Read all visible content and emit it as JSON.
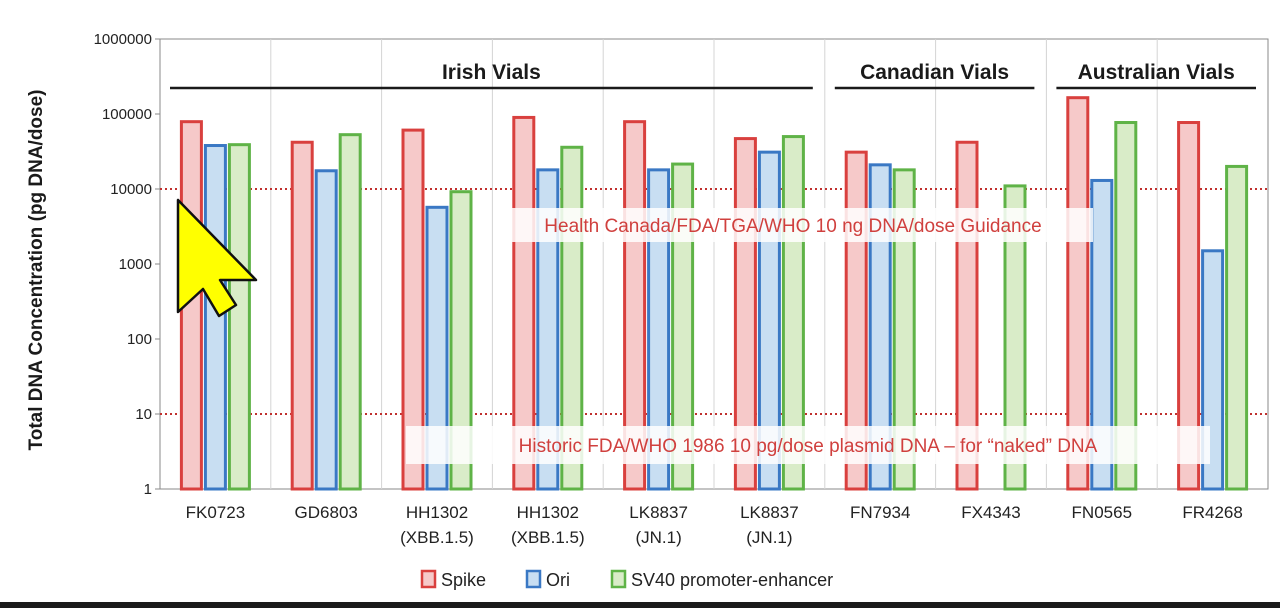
{
  "chart_data": {
    "type": "bar",
    "y_scale": "log",
    "ylim": [
      1,
      1000000
    ],
    "ylabel": "Total DNA Concentration (pg DNA/dose)",
    "xlabel": "",
    "y_ticks": [
      "1",
      "10",
      "100",
      "1000",
      "10000",
      "100000",
      "1000000"
    ],
    "y_tick_values": [
      1,
      10,
      100,
      1000,
      10000,
      100000,
      1000000
    ],
    "grid": "vertical",
    "categories": [
      [
        "FK0723"
      ],
      [
        "GD6803"
      ],
      [
        "HH1302",
        "(XBB.1.5)"
      ],
      [
        "HH1302",
        "(XBB.1.5)"
      ],
      [
        "LK8837",
        "(JN.1)"
      ],
      [
        "LK8837",
        "(JN.1)"
      ],
      [
        "FN7934"
      ],
      [
        "FX4343"
      ],
      [
        "FN0565"
      ],
      [
        "FR4268"
      ]
    ],
    "series": [
      {
        "name": "Spike",
        "values": [
          79000,
          42000,
          61000,
          90000,
          79000,
          47000,
          31000,
          42000,
          165000,
          77000
        ]
      },
      {
        "name": "Ori",
        "values": [
          38000,
          17500,
          5700,
          18000,
          18000,
          31000,
          21000,
          null,
          13000,
          1500
        ]
      },
      {
        "name": "SV40 promoter-enhancer",
        "values": [
          39000,
          53000,
          9200,
          36000,
          21500,
          50000,
          18000,
          11000,
          77000,
          20000
        ]
      }
    ],
    "series_colors": {
      "Spike": {
        "fill": "#f6c9c9",
        "stroke": "#d9403e"
      },
      "Ori": {
        "fill": "#c8def2",
        "stroke": "#3a78c4"
      },
      "SV40 promoter-enhancer": {
        "fill": "#d9ecc8",
        "stroke": "#5fb347"
      }
    },
    "groups": [
      {
        "label": "Irish Vials",
        "from": 0,
        "to": 5
      },
      {
        "label": "Canadian Vials",
        "from": 6,
        "to": 7
      },
      {
        "label": "Australian Vials",
        "from": 8,
        "to": 9
      }
    ],
    "reference_lines": [
      {
        "value": 10000,
        "label": "Health Canada/FDA/TGA/WHO 10 ng DNA/dose Guidance",
        "color": "#c0302e"
      },
      {
        "value": 10,
        "label": "Historic FDA/WHO  1986 10 pg/dose plasmid DNA – for “naked” DNA",
        "color": "#c0302e"
      }
    ],
    "legend_position": "bottom-center"
  },
  "ui": {
    "cursor_icon": "mouse-pointer-arrow-icon",
    "cursor_color": "#ffff00"
  }
}
